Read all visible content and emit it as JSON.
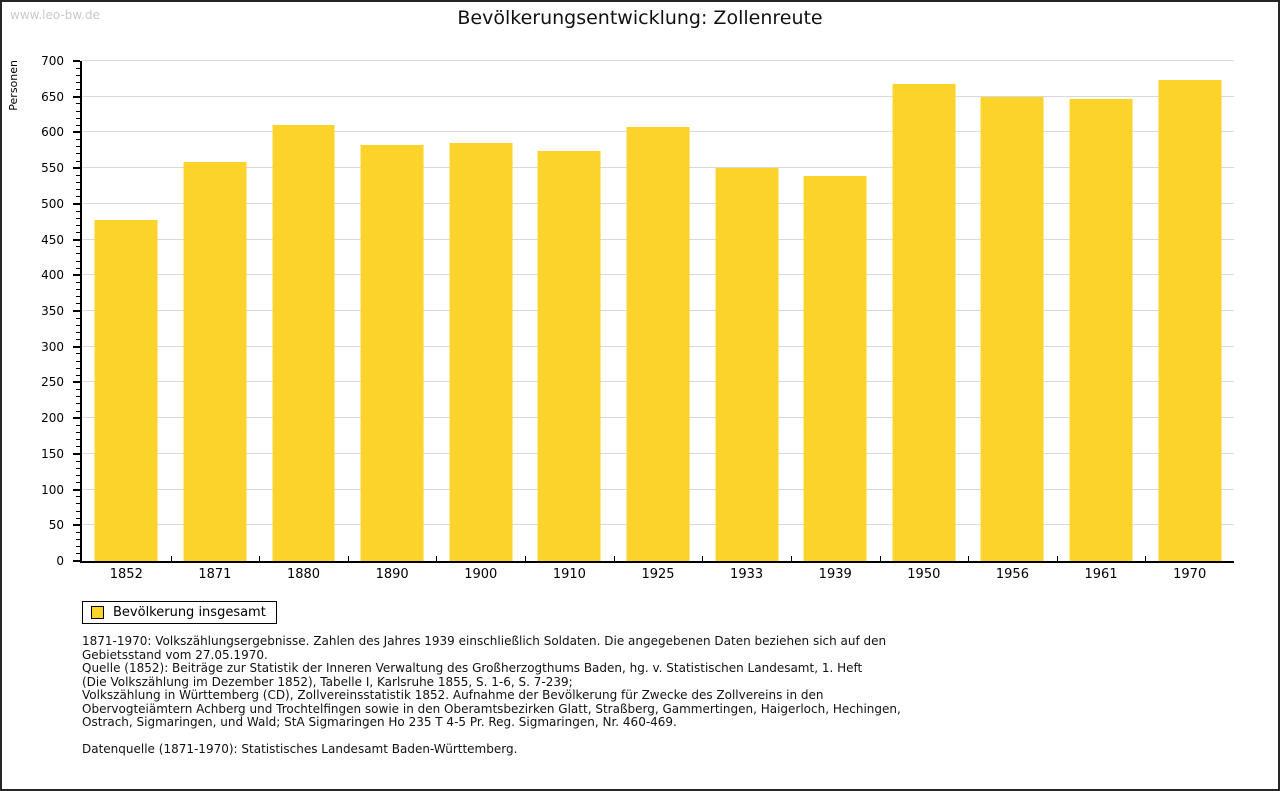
{
  "page": {
    "watermark": "www.leo-bw.de",
    "title": "Bevölkerungsentwicklung: Zollenreute"
  },
  "chart_data": {
    "type": "bar",
    "title": "Bevölkerungsentwicklung: Zollenreute",
    "ylabel": "Personen",
    "xlabel": "",
    "categories": [
      "1852",
      "1871",
      "1880",
      "1890",
      "1900",
      "1910",
      "1925",
      "1933",
      "1939",
      "1950",
      "1956",
      "1961",
      "1970"
    ],
    "values": [
      478,
      558,
      611,
      583,
      585,
      574,
      608,
      550,
      539,
      668,
      649,
      647,
      673
    ],
    "ylim": [
      0,
      700
    ],
    "ytick_step": 50,
    "yminor_step": 10,
    "grid": true,
    "legend_position": "bottom-left",
    "bar_color": "#FCD32B",
    "grid_color": "#d9d9d9",
    "axis_color": "#000000"
  },
  "legend": {
    "label": "Bevölkerung insgesamt",
    "swatch_color": "#FCD32B"
  },
  "footnotes": {
    "lines": [
      "1871-1970: Volkszählungsergebnisse. Zahlen des Jahres 1939 einschließlich Soldaten. Die angegebenen Daten beziehen sich auf den",
      "Gebietsstand vom 27.05.1970.",
      "Quelle (1852): Beiträge zur Statistik der Inneren Verwaltung des Großherzogthums Baden, hg. v. Statistischen Landesamt, 1. Heft",
      "(Die Volkszählung im Dezember 1852), Tabelle I, Karlsruhe 1855, S. 1-6, S. 7-239;",
      "Volkszählung in Württemberg (CD), Zollvereinsstatistik 1852. Aufnahme der Bevölkerung für Zwecke des Zollvereins in den",
      "Obervogteiämtern Achberg und Trochtelfingen sowie in den Oberamtsbezirken Glatt, Straßberg, Gammertingen, Haigerloch, Hechingen,",
      "Ostrach, Sigmaringen, und Wald; StA Sigmaringen Ho 235 T 4-5 Pr. Reg. Sigmaringen, Nr. 460-469."
    ],
    "datasource": "Datenquelle (1871-1970): Statistisches Landesamt Baden-Württemberg."
  }
}
